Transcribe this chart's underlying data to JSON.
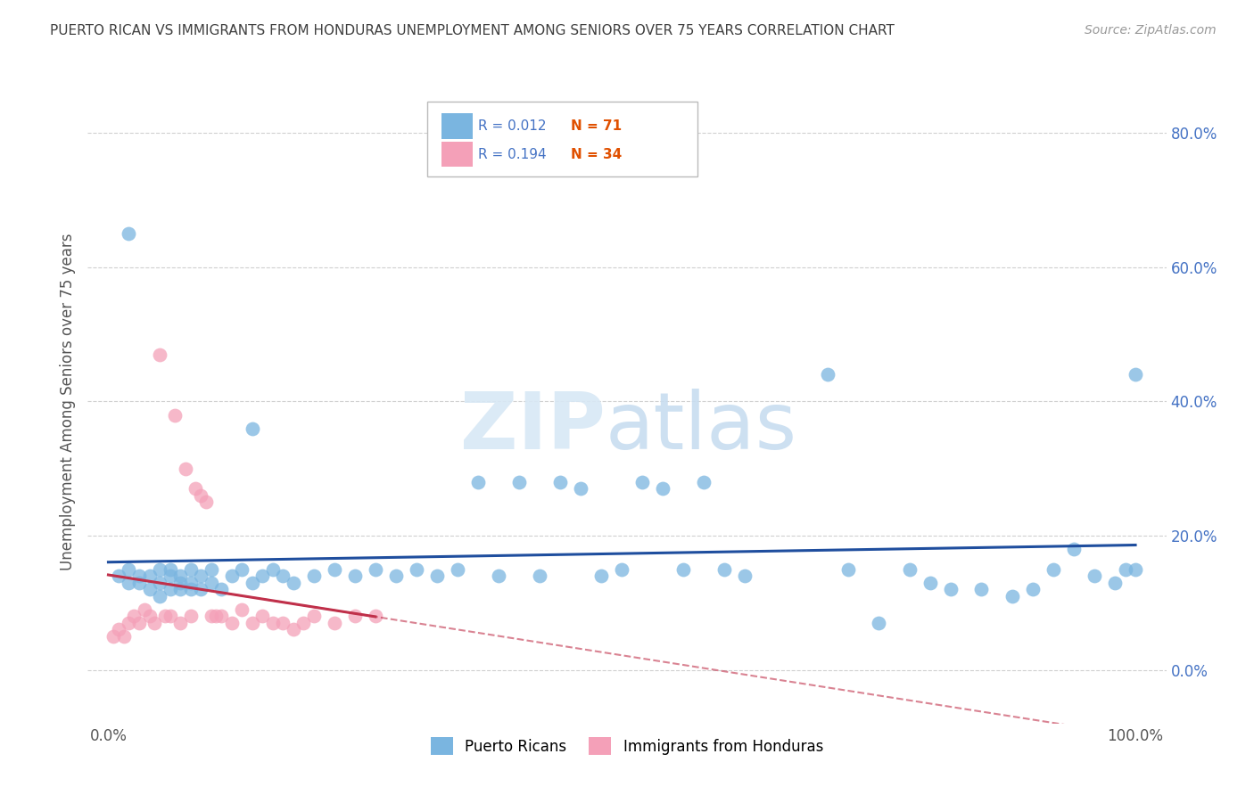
{
  "title": "PUERTO RICAN VS IMMIGRANTS FROM HONDURAS UNEMPLOYMENT AMONG SENIORS OVER 75 YEARS CORRELATION CHART",
  "source": "Source: ZipAtlas.com",
  "ylabel": "Unemployment Among Seniors over 75 years",
  "blue_color": "#7ab5e0",
  "pink_color": "#f4a0b8",
  "trend_blue": "#1f4e9e",
  "trend_pink": "#c0304a",
  "grid_color": "#d0d0d0",
  "title_color": "#404040",
  "source_color": "#999999",
  "legend_text_color": "#4472c4",
  "legend_n_color": "#e05000",
  "watermark_zip_color": "#d8e8f5",
  "watermark_atlas_color": "#c8ddf0",
  "blue_x": [
    1,
    2,
    2,
    3,
    3,
    4,
    4,
    5,
    5,
    5,
    6,
    6,
    6,
    7,
    7,
    7,
    8,
    8,
    8,
    9,
    9,
    10,
    10,
    11,
    12,
    13,
    14,
    15,
    16,
    17,
    18,
    20,
    22,
    24,
    26,
    28,
    30,
    32,
    34,
    36,
    38,
    40,
    42,
    44,
    46,
    48,
    50,
    52,
    54,
    56,
    58,
    60,
    62,
    70,
    72,
    75,
    78,
    80,
    82,
    85,
    88,
    90,
    92,
    94,
    96,
    98,
    99,
    100,
    100,
    2,
    14
  ],
  "blue_y": [
    14,
    13,
    15,
    13,
    14,
    14,
    12,
    11,
    15,
    13,
    14,
    12,
    15,
    14,
    13,
    12,
    15,
    13,
    12,
    14,
    12,
    15,
    13,
    12,
    14,
    15,
    13,
    14,
    15,
    14,
    13,
    14,
    15,
    14,
    15,
    14,
    15,
    14,
    15,
    28,
    14,
    28,
    14,
    28,
    27,
    14,
    15,
    28,
    27,
    15,
    28,
    15,
    14,
    44,
    15,
    7,
    15,
    13,
    12,
    12,
    11,
    12,
    15,
    18,
    14,
    13,
    15,
    44,
    15,
    65,
    36
  ],
  "pink_x": [
    0.5,
    1,
    1.5,
    2,
    2.5,
    3,
    3.5,
    4,
    4.5,
    5,
    5.5,
    6,
    6.5,
    7,
    7.5,
    8,
    8.5,
    9,
    9.5,
    10,
    10.5,
    11,
    12,
    13,
    14,
    15,
    16,
    17,
    18,
    19,
    20,
    22,
    24,
    26
  ],
  "pink_y": [
    5,
    6,
    5,
    7,
    8,
    7,
    9,
    8,
    7,
    47,
    8,
    8,
    38,
    7,
    30,
    8,
    27,
    26,
    25,
    8,
    8,
    8,
    7,
    9,
    7,
    8,
    7,
    7,
    6,
    7,
    8,
    7,
    8,
    8
  ],
  "xlim": [
    0,
    100
  ],
  "ylim": [
    -5,
    85
  ],
  "yticks": [
    0,
    20,
    40,
    60,
    80
  ],
  "ytick_labels": [
    "0.0%",
    "20.0%",
    "40.0%",
    "60.0%",
    "80.0%"
  ],
  "xtick_labels": [
    "0.0%",
    "100.0%"
  ]
}
